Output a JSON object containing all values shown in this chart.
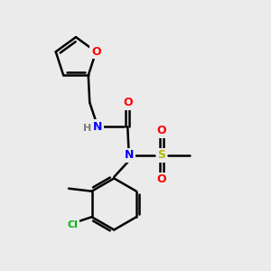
{
  "background_color": "#ebebeb",
  "atom_colors": {
    "C": "#000000",
    "N": "#0000ff",
    "O": "#ff0000",
    "S": "#b8b800",
    "Cl": "#00b800",
    "H": "#7a7a7a"
  },
  "bond_color": "#000000",
  "bond_width": 1.8
}
